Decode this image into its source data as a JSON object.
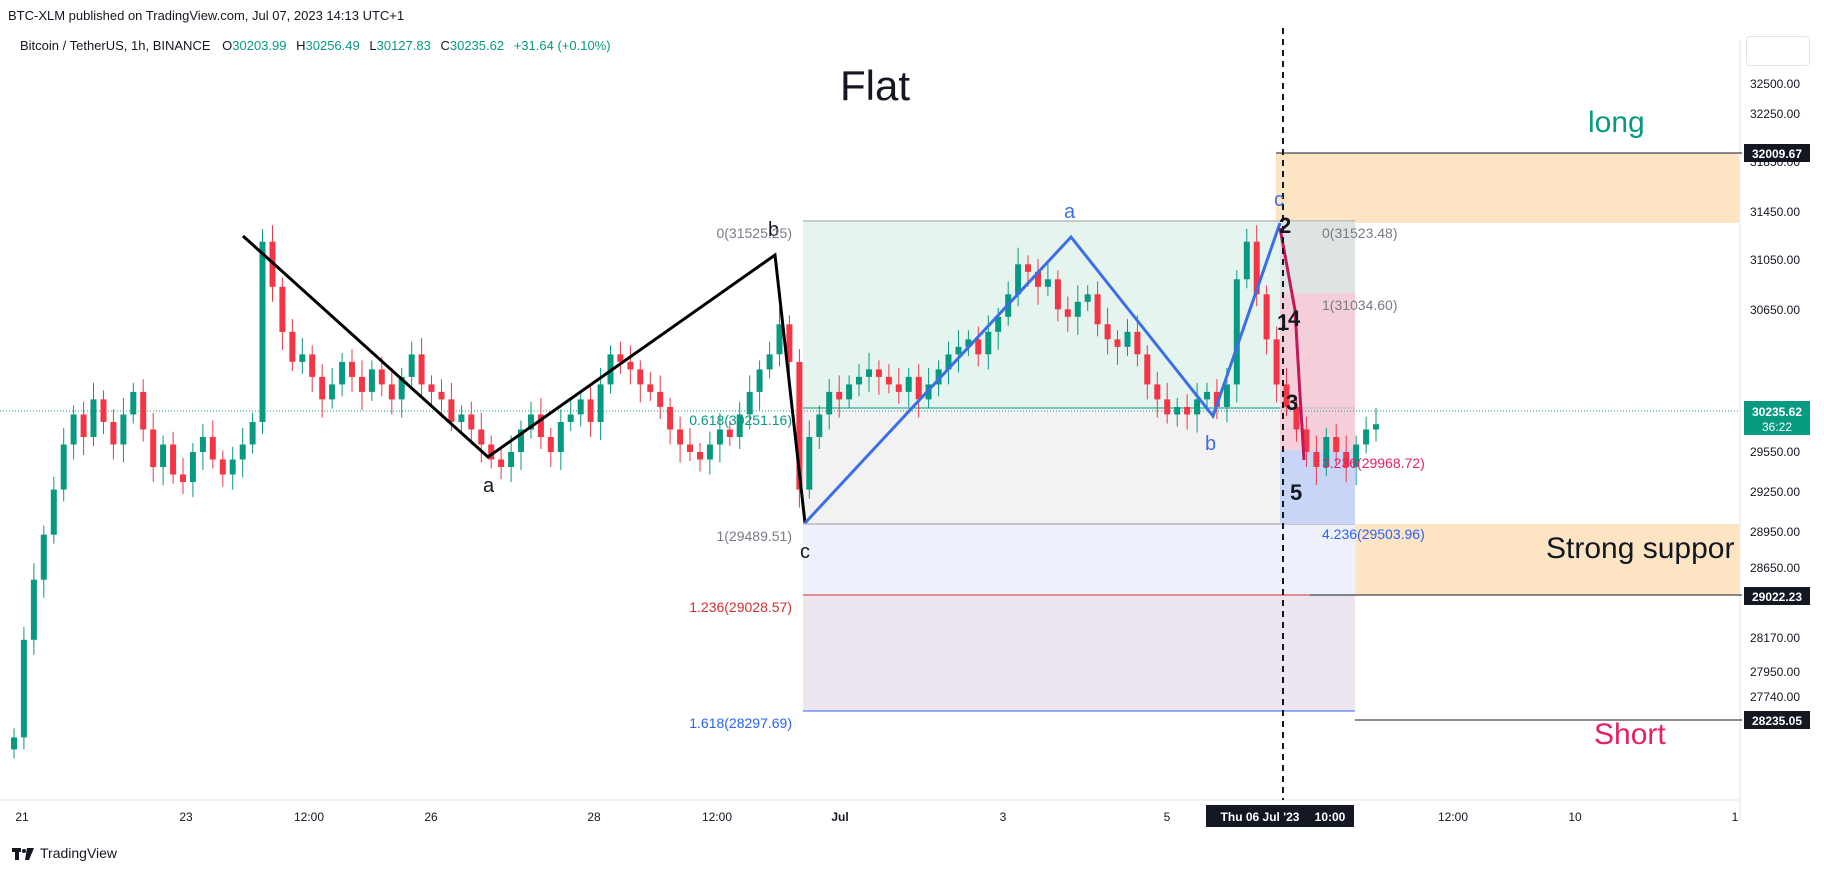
{
  "publisher_line": "BTC-XLM published on TradingView.com, Jul 07, 2023 14:13 UTC+1",
  "symbol_line": "Bitcoin / TetherUS, 1h, BINANCE",
  "ohlc": [
    {
      "key": "O",
      "value": "30203.99"
    },
    {
      "key": "H",
      "value": "30256.49"
    },
    {
      "key": "L",
      "value": "30127.83"
    },
    {
      "key": "C",
      "value": "30235.62"
    },
    {
      "key": "",
      "value": "+31.64 (+0.10%)"
    }
  ],
  "brand": "TradingView",
  "colors": {
    "up": "#089981",
    "down": "#f23645",
    "wave": "#2962ff",
    "long_zone": "#fde5c3",
    "fib_green": "#e6f4ef",
    "fib_blue": "#e7ecfb",
    "fib_purple": "#ece6f0"
  },
  "chart_data": {
    "type": "candlestick",
    "symbol": "BTCUSDT",
    "timeframe": "1h",
    "ylim": [
      27740,
      32700
    ],
    "y_ticks": [
      "32500.00",
      "32250.00",
      "31850.00",
      "31450.00",
      "31050.00",
      "30650.00",
      "29850.00",
      "29550.00",
      "29250.00",
      "28950.00",
      "28650.00",
      "28410.00",
      "28170.00",
      "27950.00",
      "27740.00"
    ],
    "x_ticks": [
      "21",
      "23",
      "12:00",
      "26",
      "28",
      "12:00",
      "Jul",
      "3",
      "5",
      "12:00",
      "10",
      "1"
    ],
    "cursor_date_label": "Thu 06 Jul '23",
    "cursor_time_label": "10:00",
    "price_labels": [
      {
        "label": "32009.67",
        "style": "dark"
      },
      {
        "label": "29022.23",
        "style": "dark"
      },
      {
        "label": "28235.05",
        "style": "dark"
      },
      {
        "label": "30235.62",
        "sub": "36:22",
        "style": "green"
      }
    ],
    "annotations": {
      "title": "Flat",
      "long": "long",
      "short": "Short",
      "support": "Strong suppor",
      "wave_a_black": "a",
      "wave_b_black": "b",
      "wave_c_black": "c",
      "wave_a_blue": "a",
      "wave_b_blue": "b",
      "wave_c_blue": "c",
      "impulse": [
        "1",
        "2",
        "3",
        "4",
        "5"
      ]
    },
    "fib_left": [
      {
        "label": "0(31525.25)"
      },
      {
        "label": "0.618(30251.16)"
      },
      {
        "label": "1(29489.51)"
      },
      {
        "label": "1.236(29028.57)"
      },
      {
        "label": "1.618(28297.69)"
      }
    ],
    "fib_right": [
      {
        "label": "0(31523.48)"
      },
      {
        "label": "1(31034.60)"
      },
      {
        "label": "3.236(29968.72)"
      },
      {
        "label": "4.236(29503.96)"
      }
    ],
    "black_wave_prices": [
      31450,
      29920,
      31300,
      29490
    ],
    "blue_wave_prices": [
      29490,
      31450,
      30220,
      31500
    ],
    "close_series": [
      28150,
      28800,
      29200,
      29500,
      29800,
      30100,
      30300,
      30150,
      30400,
      30250,
      30100,
      30300,
      30450,
      30200,
      29950,
      30100,
      29900,
      29850,
      30050,
      30150,
      30000,
      29900,
      30000,
      30100,
      30250,
      31450,
      31150,
      30850,
      30650,
      30700,
      30550,
      30400,
      30500,
      30650,
      30550,
      30450,
      30600,
      30500,
      30400,
      30550,
      30700,
      30500,
      30450,
      30400,
      30250,
      30300,
      30200,
      30100,
      30000,
      29950,
      30050,
      30200,
      30300,
      30150,
      30050,
      30250,
      30300,
      30400,
      30250,
      30500,
      30700,
      30650,
      30600,
      30500,
      30450,
      30350,
      30200,
      30100,
      30050,
      30000,
      30100,
      30200,
      30150,
      30300,
      30450,
      30600,
      30700,
      30900,
      30650,
      29800,
      30150,
      30300,
      30450,
      30400,
      30500,
      30550,
      30600,
      30550,
      30500,
      30450,
      30550,
      30400,
      30500,
      30600,
      30700,
      30750,
      30800,
      30700,
      30850,
      30950,
      31100,
      31300,
      31250,
      31150,
      31200,
      31000,
      30950,
      31050,
      31100,
      30900,
      30800,
      30750,
      30850,
      30700,
      30500,
      30400,
      30300,
      30350,
      30300,
      30400,
      30450,
      30350,
      30500,
      31200,
      31450,
      31100,
      30800,
      30500,
      30350,
      30200,
      30050,
      29950,
      30150,
      30050,
      29950,
      30100,
      30200,
      30235
    ]
  }
}
